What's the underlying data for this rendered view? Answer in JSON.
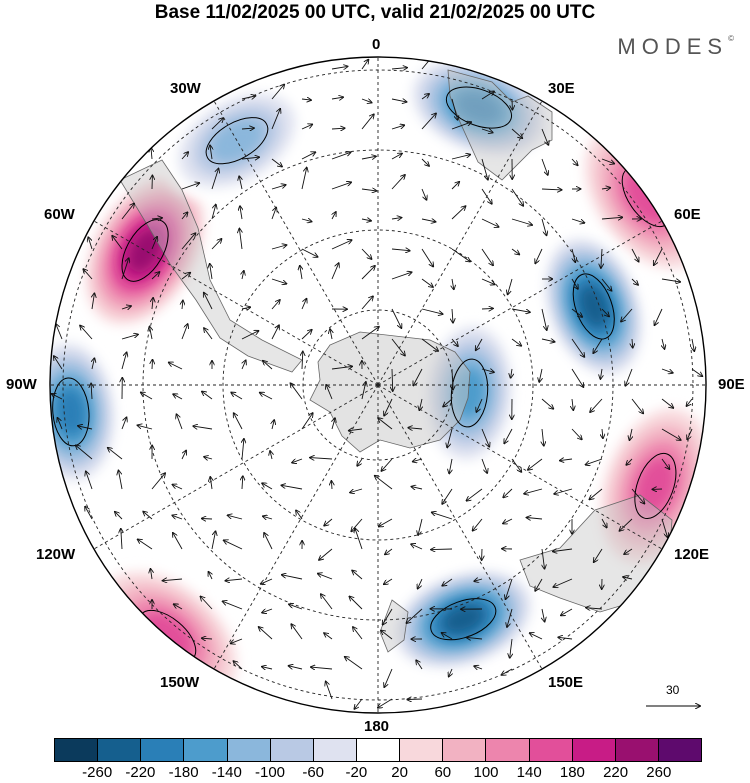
{
  "title": "Base 11/02/2025 00 UTC, valid 21/02/2025 00 UTC",
  "brand": "MODES",
  "brand_mark": "©",
  "longitude_labels": {
    "top": "0",
    "top_right": "30E",
    "upper_right": "60E",
    "right": "90E",
    "lower_right": "120E",
    "bottom_right": "150E",
    "bottom": "180",
    "bottom_left": "150W",
    "lower_left": "120W",
    "left": "90W",
    "upper_left": "60W",
    "top_left": "30W"
  },
  "vector_scale_label": "30",
  "colorbar": {
    "colors": [
      "#0b3a5c",
      "#155f8e",
      "#2a7fb7",
      "#4d9ccc",
      "#8bb7dc",
      "#b9c9e4",
      "#dfe2f0",
      "#ffffff",
      "#f8d8dc",
      "#f2b2c2",
      "#ed85ad",
      "#e24f9a",
      "#c81c86",
      "#99106f",
      "#5e0a6d"
    ],
    "tick_labels": [
      "-260",
      "-220",
      "-180",
      "-140",
      "-100",
      "-60",
      "-20",
      "20",
      "60",
      "100",
      "140",
      "180",
      "220",
      "260"
    ]
  },
  "anomaly_centers": [
    {
      "kind": "negative",
      "lon": 20,
      "lat_from_pole": 45,
      "value": -180
    },
    {
      "kind": "positive",
      "lon": 55,
      "lat_from_pole": 40,
      "value": 120
    },
    {
      "kind": "negative",
      "lon": 70,
      "lat_from_pole": 55,
      "value": -220
    },
    {
      "kind": "negative",
      "lon": 95,
      "lat_from_pole": 76,
      "value": -140
    },
    {
      "kind": "positive",
      "lon": 110,
      "lat_from_pole": 45,
      "value": 120
    },
    {
      "kind": "negative",
      "lon": 160,
      "lat_from_pole": 52,
      "value": -220
    },
    {
      "kind": "positive",
      "lon": 220,
      "lat_from_pole": 40,
      "value": 120
    },
    {
      "kind": "negative",
      "lon": 265,
      "lat_from_pole": 43,
      "value": -200
    },
    {
      "kind": "positive",
      "lon": 300,
      "lat_from_pole": 49,
      "value": 180
    },
    {
      "kind": "negative",
      "lon": 330,
      "lat_from_pole": 47,
      "value": -120
    }
  ]
}
